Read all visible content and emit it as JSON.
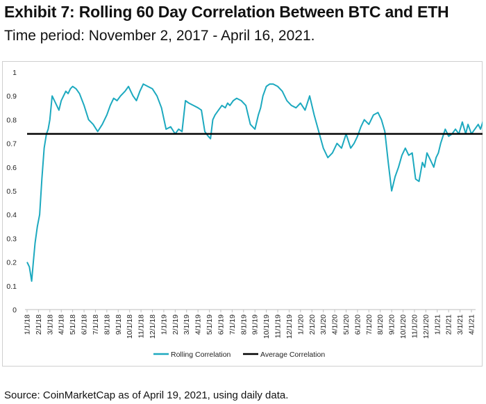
{
  "header": {
    "title": "Exhibit 7: Rolling 60 Day Correlation Between BTC and ETH",
    "subtitle": "Time period: November 2, 2017 - April 16, 2021."
  },
  "footer": {
    "source": "Source: CoinMarketCap as of April 19, 2021, using daily data."
  },
  "colors": {
    "rolling": "#1ca9bf",
    "average": "#000000"
  },
  "chart_data": {
    "type": "line",
    "title": "Rolling 60 Day Correlation Between BTC and ETH",
    "xlabel": "",
    "ylabel": "",
    "ylim": [
      0,
      1
    ],
    "grid": false,
    "legend_position": "bottom-center",
    "y_ticks": [
      "0",
      "0.1",
      "0.2",
      "0.3",
      "0.4",
      "0.5",
      "0.6",
      "0.7",
      "0.8",
      "0.9",
      "1"
    ],
    "x_ticks": [
      "1/1/18",
      "2/1/18",
      "3/1/18",
      "4/1/18",
      "5/1/18",
      "6/1/18",
      "7/1/18",
      "8/1/18",
      "9/1/18",
      "10/1/18",
      "11/1/18",
      "12/1/18",
      "1/1/19",
      "2/1/19",
      "3/1/19",
      "4/1/19",
      "5/1/19",
      "6/1/19",
      "7/1/19",
      "8/1/19",
      "9/1/19",
      "10/1/19",
      "11/1/19",
      "12/1/19",
      "1/1/20",
      "2/1/20",
      "3/1/20",
      "4/1/20",
      "5/1/20",
      "6/1/20",
      "7/1/20",
      "8/1/20",
      "9/1/20",
      "10/1/20",
      "11/1/20",
      "12/1/20",
      "1/1/21",
      "2/1/21",
      "3/1/21",
      "4/1/21"
    ],
    "series": [
      {
        "name": "Rolling Correlation",
        "x": [
          0,
          0.2,
          0.4,
          0.55,
          0.7,
          0.9,
          1.1,
          1.3,
          1.5,
          1.7,
          1.85,
          2.0,
          2.2,
          2.4,
          2.6,
          2.8,
          3.0,
          3.2,
          3.4,
          3.6,
          3.8,
          4.0,
          4.3,
          4.6,
          5.0,
          5.4,
          5.8,
          6.2,
          6.6,
          7.0,
          7.3,
          7.6,
          7.9,
          8.2,
          8.6,
          8.9,
          9.1,
          9.3,
          9.6,
          9.9,
          10.2,
          10.6,
          11.0,
          11.4,
          11.8,
          12.2,
          12.6,
          13.0,
          13.3,
          13.6,
          13.9,
          14.2,
          14.6,
          15.0,
          15.3,
          15.6,
          15.9,
          16.1,
          16.3,
          16.5,
          16.8,
          17.1,
          17.4,
          17.6,
          17.8,
          18.1,
          18.4,
          18.8,
          19.2,
          19.6,
          20.0,
          20.3,
          20.5,
          20.7,
          21.0,
          21.3,
          21.6,
          22.0,
          22.4,
          22.8,
          23.2,
          23.6,
          24.0,
          24.4,
          24.8,
          25.2,
          25.6,
          26.0,
          26.4,
          26.8,
          27.2,
          27.6,
          28.0,
          28.4,
          28.7,
          29.0,
          29.3,
          29.6,
          30.0,
          30.4,
          30.8,
          31.1,
          31.4,
          31.7,
          32.0,
          32.3,
          32.6,
          32.9,
          33.2,
          33.5,
          33.8,
          34.1,
          34.4,
          34.7,
          34.9,
          35.1,
          35.3,
          35.5,
          35.7,
          35.9,
          36.1,
          36.3,
          36.5,
          36.7,
          37.0,
          37.3,
          37.6,
          37.9,
          38.2,
          38.5,
          38.7,
          39.0,
          39.3,
          39.6,
          39.8,
          40.0,
          40.15
        ],
        "values": [
          0.2,
          0.18,
          0.12,
          0.2,
          0.28,
          0.35,
          0.4,
          0.55,
          0.68,
          0.74,
          0.76,
          0.8,
          0.9,
          0.88,
          0.86,
          0.84,
          0.88,
          0.9,
          0.92,
          0.91,
          0.93,
          0.94,
          0.93,
          0.91,
          0.86,
          0.8,
          0.78,
          0.75,
          0.78,
          0.82,
          0.86,
          0.89,
          0.88,
          0.9,
          0.92,
          0.94,
          0.92,
          0.9,
          0.88,
          0.92,
          0.95,
          0.94,
          0.93,
          0.9,
          0.85,
          0.76,
          0.77,
          0.74,
          0.76,
          0.75,
          0.88,
          0.87,
          0.86,
          0.85,
          0.84,
          0.75,
          0.73,
          0.72,
          0.8,
          0.82,
          0.84,
          0.86,
          0.85,
          0.87,
          0.86,
          0.88,
          0.89,
          0.88,
          0.86,
          0.78,
          0.76,
          0.82,
          0.85,
          0.9,
          0.94,
          0.95,
          0.95,
          0.94,
          0.92,
          0.88,
          0.86,
          0.85,
          0.87,
          0.84,
          0.9,
          0.82,
          0.75,
          0.68,
          0.64,
          0.66,
          0.7,
          0.68,
          0.74,
          0.68,
          0.7,
          0.73,
          0.77,
          0.8,
          0.78,
          0.82,
          0.83,
          0.8,
          0.75,
          0.62,
          0.5,
          0.56,
          0.6,
          0.65,
          0.68,
          0.65,
          0.66,
          0.55,
          0.54,
          0.62,
          0.6,
          0.66,
          0.64,
          0.62,
          0.6,
          0.64,
          0.66,
          0.7,
          0.73,
          0.76,
          0.73,
          0.74,
          0.76,
          0.74,
          0.79,
          0.74,
          0.78,
          0.74,
          0.76,
          0.78,
          0.76,
          0.79,
          0.78
        ]
      },
      {
        "name": "Average Correlation",
        "x": [
          0,
          40.15
        ],
        "values": [
          0.74,
          0.74
        ]
      }
    ]
  }
}
